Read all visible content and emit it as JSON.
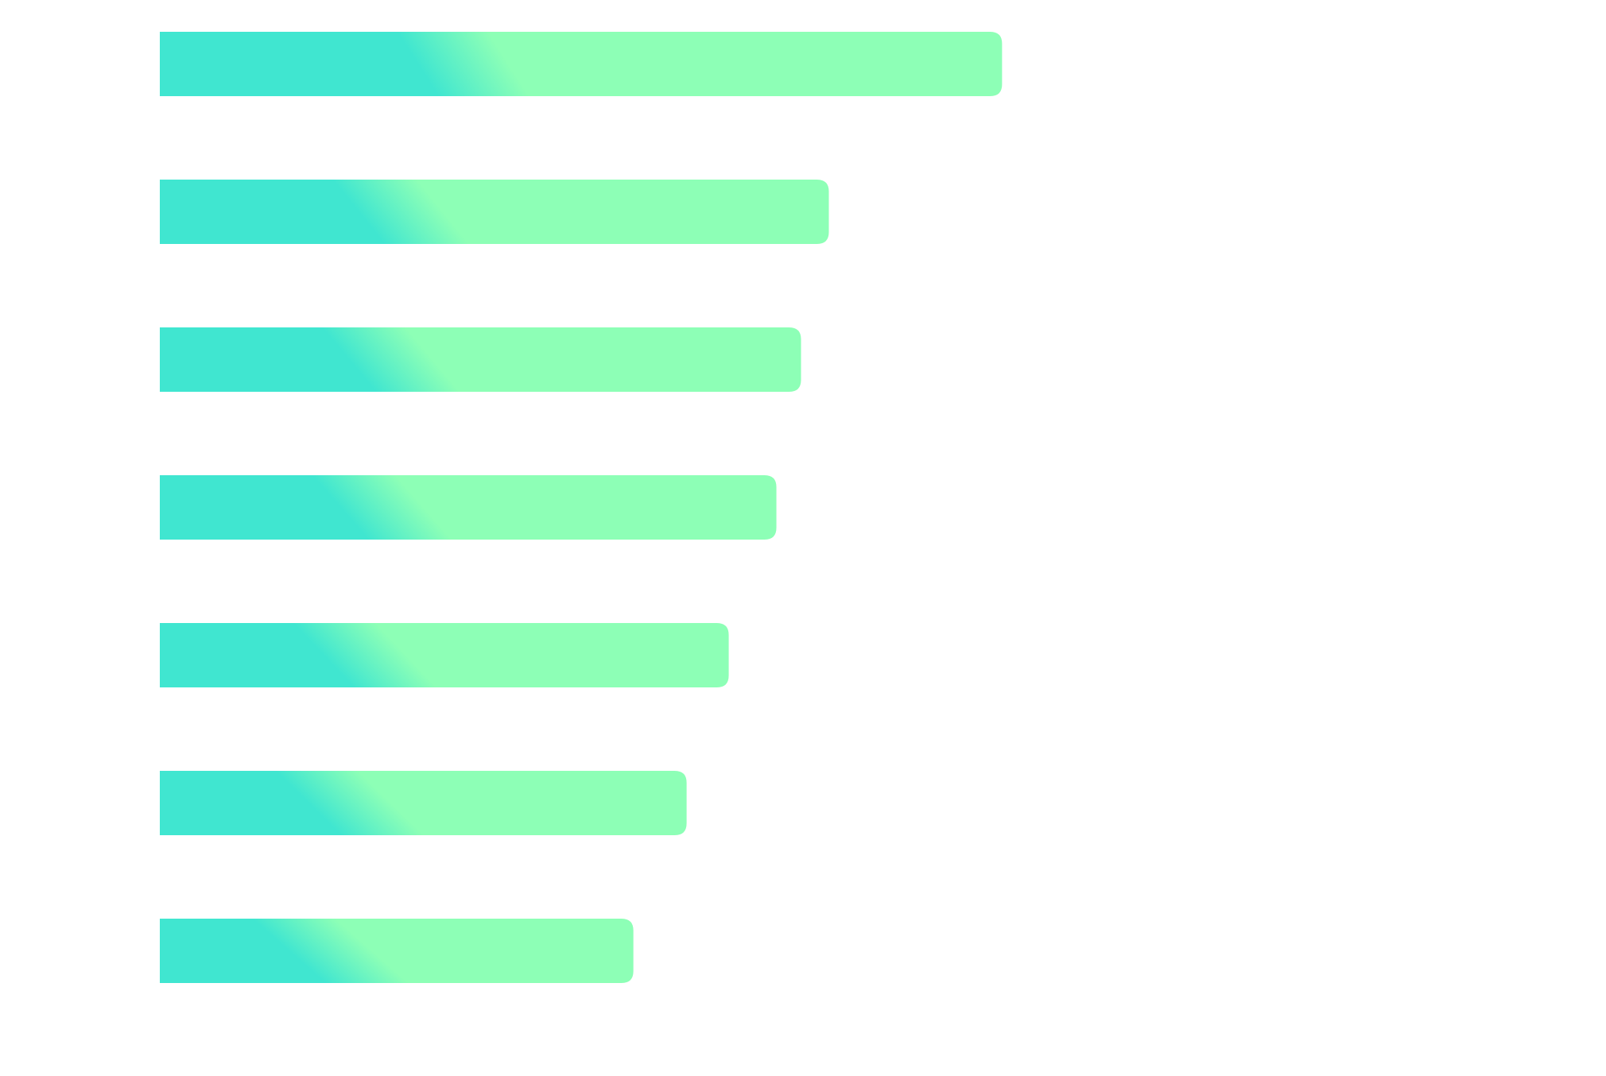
{
  "chart_data": {
    "type": "bar",
    "orientation": "horizontal",
    "values": [
      1060,
      842,
      807,
      776,
      716,
      663,
      596
    ],
    "xlim": [
      0,
      1700
    ],
    "grid": false,
    "legend": "none",
    "colors": {
      "gradient_start": "#40E6D0",
      "gradient_end": "#8DFFB6",
      "background": "#FFFFFF"
    }
  }
}
